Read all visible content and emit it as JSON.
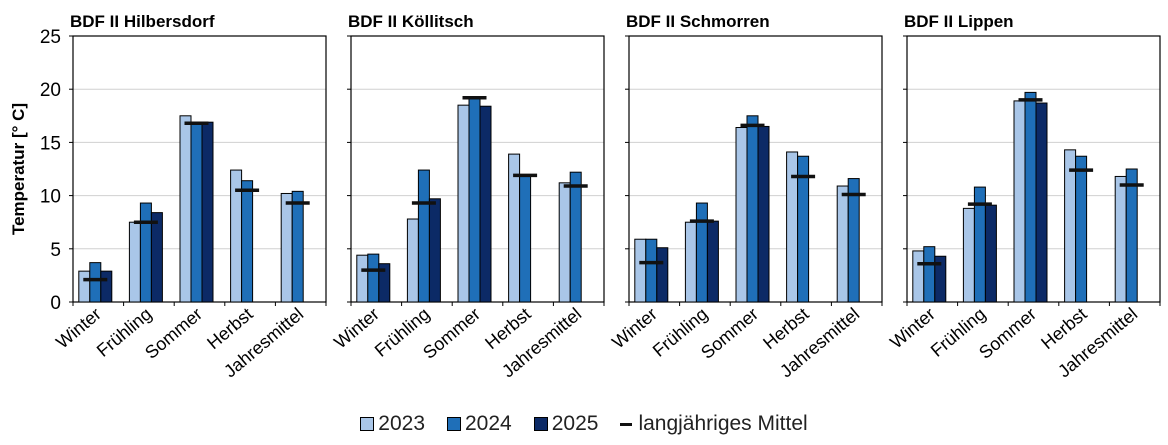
{
  "colors": {
    "s2023": "#a9c6e8",
    "s2024": "#1f6fb8",
    "s2025": "#0c2a66",
    "mean": "#111111",
    "grid": "#d0d0d0"
  },
  "legend": {
    "s2023": "2023",
    "s2024": "2024",
    "s2025": "2025",
    "mean": "langjähriges Mittel"
  },
  "chart_data": {
    "type": "bar",
    "ylabel": "Temperatur [° C]",
    "ylim": [
      0,
      25
    ],
    "yticks": [
      "0",
      "5",
      "10",
      "15",
      "20",
      "25"
    ],
    "categories": [
      "Winter",
      "Frühling",
      "Sommer",
      "Herbst",
      "Jahresmittel"
    ],
    "grid": true,
    "legend_position": "bottom",
    "panels": [
      {
        "title": "BDF II Hilbersdorf",
        "series": [
          {
            "name": "2023",
            "values": [
              2.9,
              7.5,
              17.5,
              12.4,
              10.2
            ]
          },
          {
            "name": "2024",
            "values": [
              3.7,
              9.3,
              16.8,
              11.4,
              10.4
            ]
          },
          {
            "name": "2025",
            "values": [
              2.9,
              8.4,
              16.9,
              null,
              null
            ]
          }
        ],
        "mean": [
          2.1,
          7.5,
          16.8,
          10.5,
          9.3
        ]
      },
      {
        "title": "BDF II Köllitsch",
        "series": [
          {
            "name": "2023",
            "values": [
              4.4,
              7.8,
              18.5,
              13.9,
              11.2
            ]
          },
          {
            "name": "2024",
            "values": [
              4.5,
              12.4,
              19.3,
              11.9,
              12.2
            ]
          },
          {
            "name": "2025",
            "values": [
              3.6,
              9.7,
              18.4,
              null,
              null
            ]
          }
        ],
        "mean": [
          3.0,
          9.3,
          19.2,
          11.9,
          10.9
        ]
      },
      {
        "title": "BDF II Schmorren",
        "series": [
          {
            "name": "2023",
            "values": [
              5.9,
              7.5,
              16.4,
              14.1,
              10.9
            ]
          },
          {
            "name": "2024",
            "values": [
              5.9,
              9.3,
              17.5,
              13.7,
              11.6
            ]
          },
          {
            "name": "2025",
            "values": [
              5.1,
              7.6,
              16.5,
              null,
              null
            ]
          }
        ],
        "mean": [
          3.7,
          7.6,
          16.6,
          11.8,
          10.1
        ]
      },
      {
        "title": "BDF II Lippen",
        "series": [
          {
            "name": "2023",
            "values": [
              4.8,
              8.8,
              18.9,
              14.3,
              11.8
            ]
          },
          {
            "name": "2024",
            "values": [
              5.2,
              10.8,
              19.7,
              13.7,
              12.5
            ]
          },
          {
            "name": "2025",
            "values": [
              4.3,
              9.1,
              18.7,
              null,
              null
            ]
          }
        ],
        "mean": [
          3.6,
          9.2,
          19.0,
          12.4,
          11.0
        ]
      }
    ]
  }
}
